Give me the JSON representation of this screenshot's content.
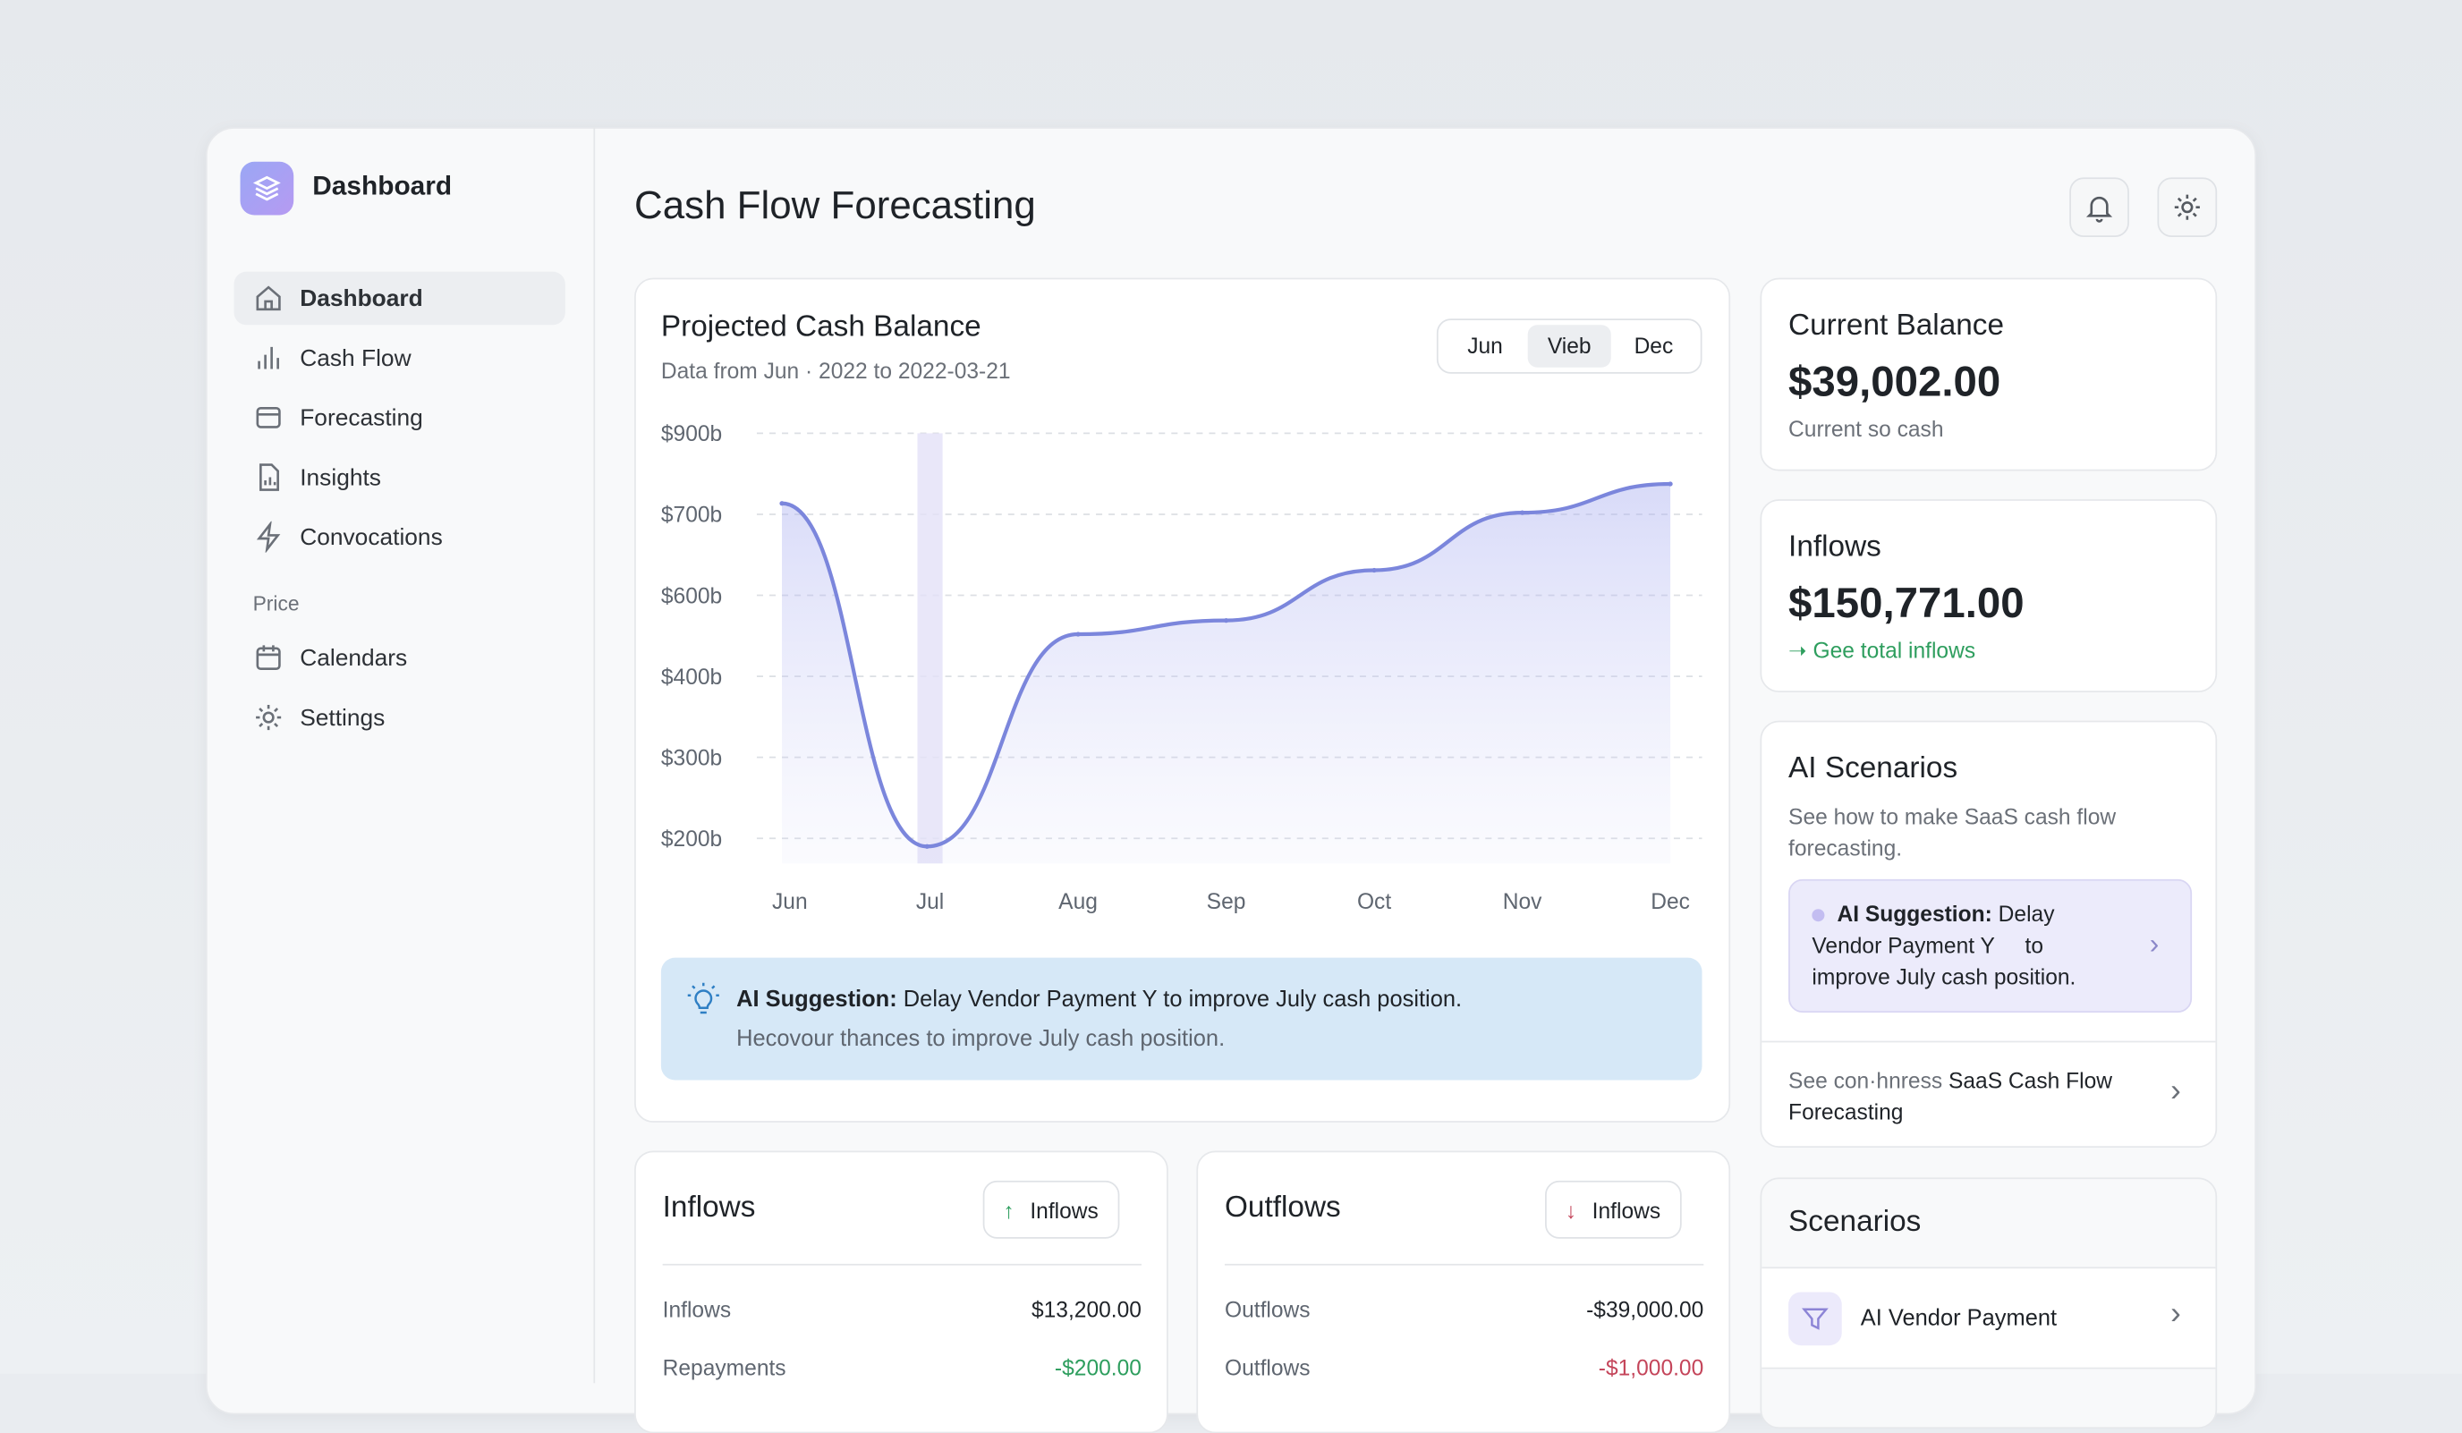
{
  "sidebar": {
    "brand": "Dashboard",
    "items": [
      {
        "label": "Dashboard",
        "icon": "home-icon"
      },
      {
        "label": "Cash Flow",
        "icon": "bar-chart-icon"
      },
      {
        "label": "Forecasting",
        "icon": "card-icon"
      },
      {
        "label": "Insights",
        "icon": "report-icon"
      },
      {
        "label": "Convocations",
        "icon": "lightning-icon"
      }
    ],
    "section": "Price",
    "items2": [
      {
        "label": "Calendars",
        "icon": "calendar-icon"
      },
      {
        "label": "Settings",
        "icon": "gear-icon"
      }
    ]
  },
  "header": {
    "title": "Cash Flow Forecasting"
  },
  "chart_card": {
    "title": "Projected Cash Balance",
    "subtitle": "Data from Jun · 2022 to 2022-03-21",
    "segments": [
      "Jun",
      "Vieb",
      "Dec"
    ],
    "active_segment": 1
  },
  "chart_data": {
    "type": "area",
    "x": [
      "Jun",
      "Jul",
      "Aug",
      "Sep",
      "Oct",
      "Nov",
      "Dec"
    ],
    "y_ticks": [
      "$900b",
      "$700b",
      "$600b",
      "$400b",
      "$300b",
      "$200b"
    ],
    "tick_values": [
      900,
      700,
      600,
      400,
      300,
      200
    ],
    "series": [
      {
        "name": "Projected balance",
        "points": [
          [
            0,
            727
          ],
          [
            0.98,
            190
          ],
          [
            2,
            504
          ],
          [
            3,
            538
          ],
          [
            4,
            631
          ],
          [
            5,
            704
          ],
          [
            6,
            775
          ]
        ]
      }
    ],
    "highlight_x": "Jul",
    "color": "#7b86dc"
  },
  "suggestion": {
    "bold": "AI Suggestion:",
    "text": " Delay Vendor Payment Y to improve July cash position.",
    "sub": "Hecovour thances to improve July cash position."
  },
  "current_balance": {
    "title": "Current Balance",
    "value": "$39,002.00",
    "sub": "Current so cash"
  },
  "inflows_summary": {
    "title": "Inflows",
    "value": "$150,771.00",
    "link": "Gee total inflows"
  },
  "ai_scenarios": {
    "title": "AI Scenarios",
    "desc": "See how to make SaaS cash flow forecasting.",
    "bold": "AI Suggestion:",
    "text": " Delay Vendor Payment Y     to improve July cash position.",
    "link_muted": "See con·hnress ",
    "link": "SaaS Cash Flow Forecasting"
  },
  "scenarios": {
    "title": "Scenarios",
    "items": [
      {
        "label": "AI Vendor Payment"
      }
    ]
  },
  "inflows": {
    "title": "Inflows",
    "button": "Inflows",
    "rows": [
      {
        "label": "Inflows",
        "value": "$13,200.00"
      },
      {
        "label": "Repayments",
        "value": "-$200.00"
      }
    ]
  },
  "outflows": {
    "title": "Outflows",
    "button": "Inflows",
    "rows": [
      {
        "label": "Outflows",
        "value": "-$39,000.00"
      },
      {
        "label": "Outflows",
        "value": "-$1,000.00"
      }
    ]
  }
}
